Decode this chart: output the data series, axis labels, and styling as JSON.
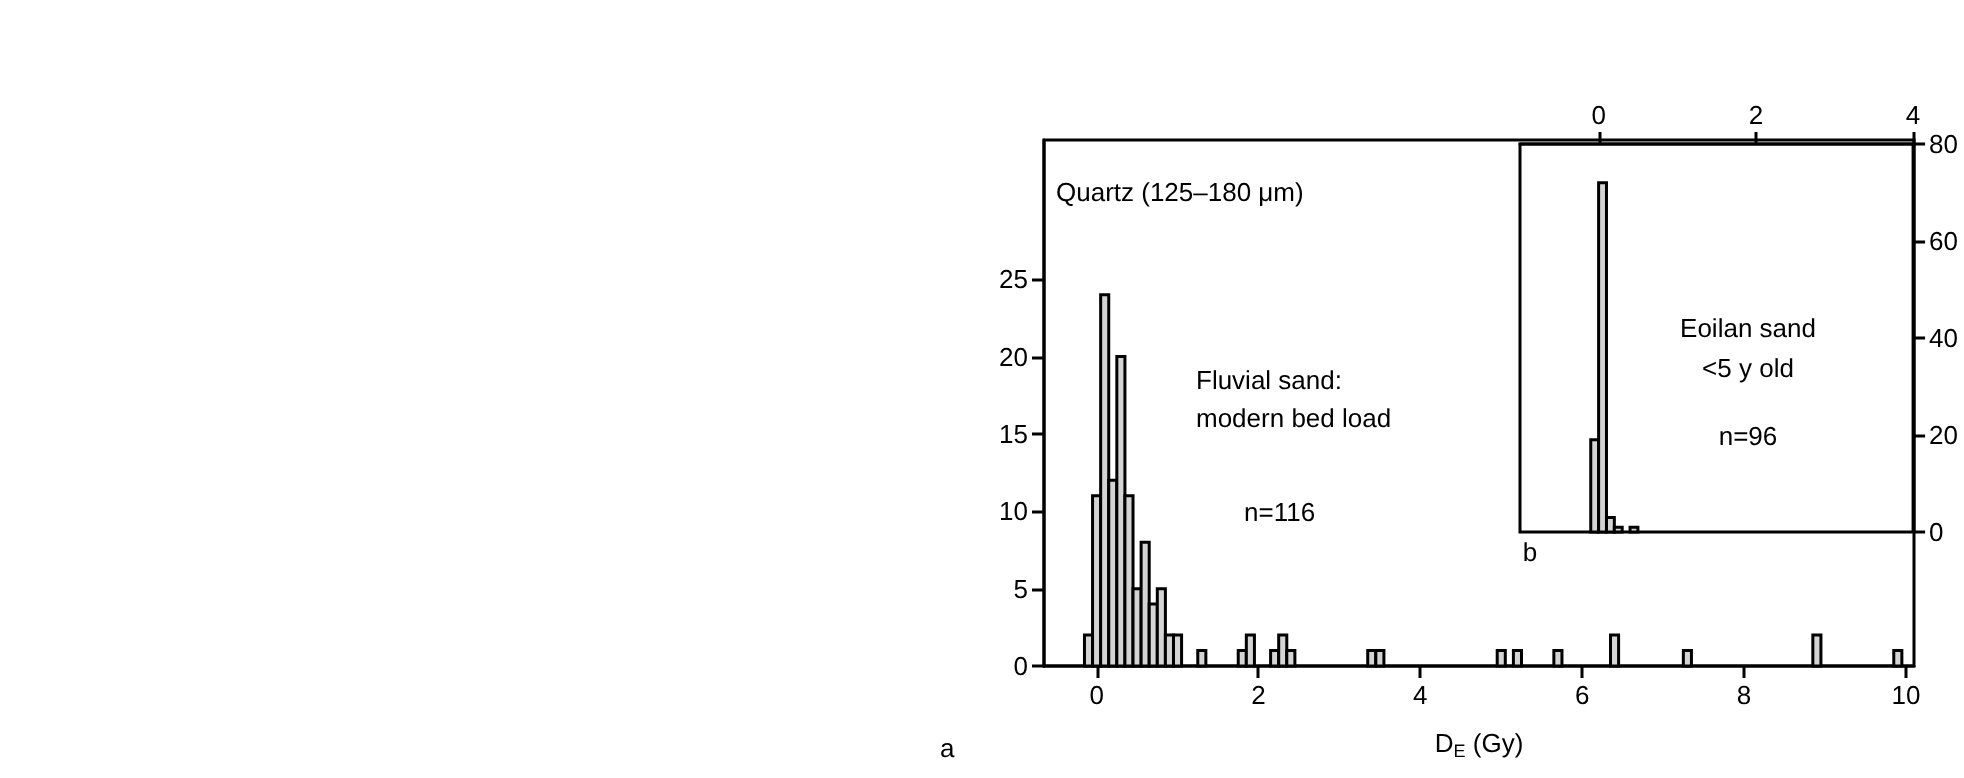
{
  "chart_data": [
    {
      "type": "histogram",
      "xlabel": "D$_{E}$ (Gy)",
      "annotations": [
        "Quartz (125–180 μm)",
        "Fluvial sand:",
        "modern bed load",
        "n=116",
        "a"
      ],
      "xlim": [
        -0.65,
        10.1
      ],
      "xticks": [
        0,
        2,
        4,
        6,
        8,
        10
      ],
      "ylim": [
        0,
        34
      ],
      "yticks": [
        0,
        5,
        10,
        15,
        20,
        25
      ],
      "bins": [
        -0.15,
        -0.05,
        0.05,
        0.15,
        0.25,
        0.35,
        0.45,
        0.55,
        0.65,
        0.75,
        0.85,
        0.95,
        1.05,
        1.15,
        1.25,
        1.35,
        1.45,
        1.55,
        1.65,
        1.75,
        1.85,
        1.95,
        2.05,
        2.15,
        2.25,
        2.35,
        2.45,
        2.55,
        2.65,
        2.75,
        2.85,
        2.95,
        3.05,
        3.15,
        3.25,
        3.35,
        3.45,
        3.55,
        3.65,
        3.75,
        3.85,
        3.95,
        4.05,
        4.15,
        4.25,
        4.35,
        4.45,
        4.55,
        4.65,
        4.75,
        4.85,
        4.95,
        5.05,
        5.15,
        5.25,
        5.35,
        5.45,
        5.55,
        5.65,
        5.75,
        5.85,
        5.95,
        6.05,
        6.15,
        6.25,
        6.35,
        6.45,
        6.55,
        6.65,
        6.75,
        6.85,
        6.95,
        7.05,
        7.15,
        7.25,
        7.35,
        7.45,
        7.55,
        7.65,
        7.75,
        7.85,
        7.95,
        8.05,
        8.15,
        8.25,
        8.35,
        8.45,
        8.55,
        8.65,
        8.75,
        8.85,
        8.95,
        9.05,
        9.15,
        9.25,
        9.35,
        9.45,
        9.55,
        9.65,
        9.75,
        9.85,
        9.95
      ],
      "series": [
        {
          "color": "#d4d4d4",
          "values": [
            2,
            11,
            24,
            12,
            20,
            11,
            5,
            8,
            4,
            5,
            2,
            2,
            0,
            0,
            1,
            0,
            0,
            0,
            0,
            1,
            2,
            0,
            0,
            1,
            2,
            1,
            0,
            0,
            0,
            0,
            0,
            0,
            0,
            0,
            0,
            1,
            1,
            0,
            0,
            0,
            0,
            0,
            0,
            0,
            0,
            0,
            0,
            0,
            0,
            0,
            0,
            1,
            0,
            1,
            0,
            0,
            0,
            0,
            1,
            0,
            0,
            0,
            0,
            0,
            0,
            2,
            0,
            0,
            0,
            0,
            0,
            0,
            0,
            0,
            1,
            0,
            0,
            0,
            0,
            0,
            0,
            0,
            0,
            0,
            0,
            0,
            0,
            0,
            0,
            0,
            2,
            0,
            0,
            0,
            0,
            0,
            0,
            0,
            0,
            0,
            1
          ]
        }
      ]
    },
    {
      "type": "histogram",
      "annotations": [
        "Eoilan sand",
        "<5 y old",
        "n=96",
        "b"
      ],
      "xlim": [
        -1,
        4
      ],
      "xticks": [
        0,
        2,
        4
      ],
      "ylim": [
        0,
        80
      ],
      "yticks": [
        0,
        20,
        40,
        60,
        80
      ],
      "bins": [
        -0.1,
        0,
        0.1,
        0.2,
        0.3,
        0.4,
        0.5
      ],
      "series": [
        {
          "color": "#d4d4d4",
          "values": [
            19,
            72,
            3,
            1,
            0,
            1
          ]
        }
      ]
    }
  ]
}
